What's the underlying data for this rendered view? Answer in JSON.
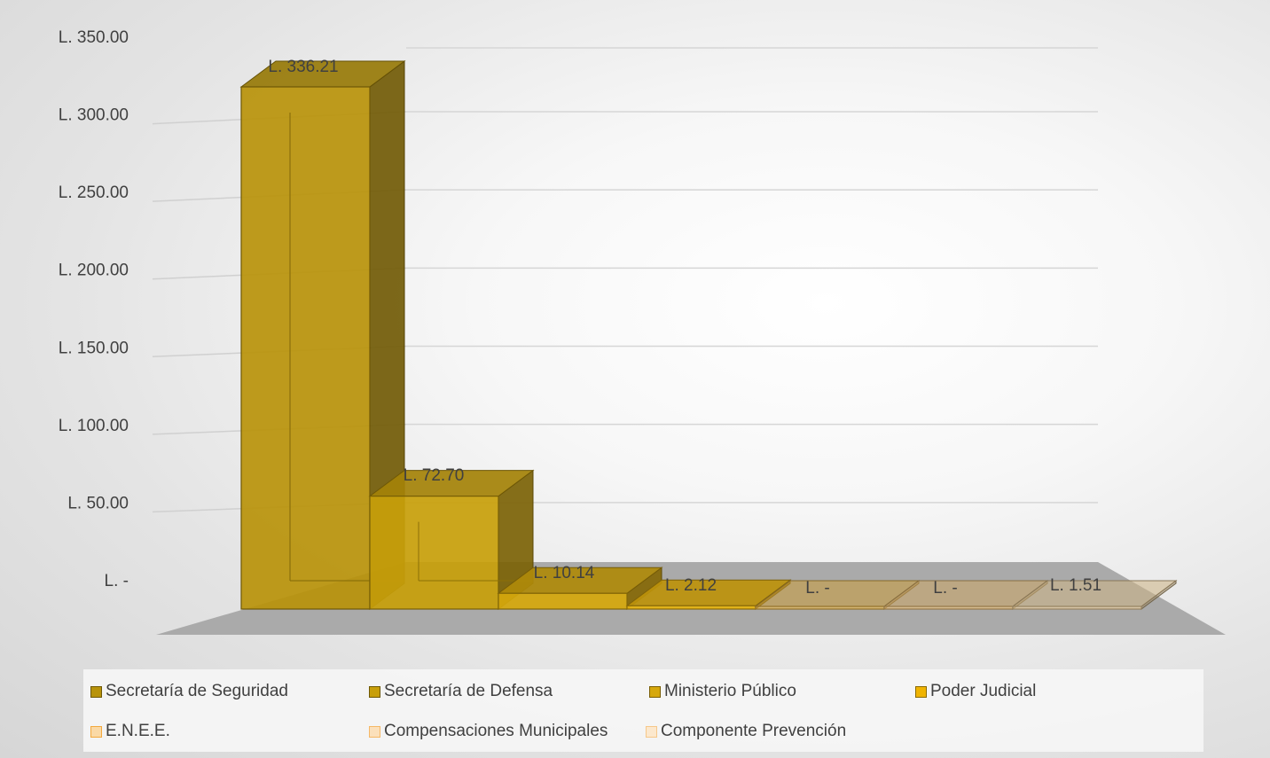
{
  "chart_data": {
    "type": "bar",
    "subtype": "3d-column",
    "categories": [
      "Secretaría de Seguridad",
      "Secretaría de Defensa",
      "Ministerio Público",
      "Poder Judicial",
      "E.N.E.E.",
      "Compensaciones Municipales",
      "Componente Prevención"
    ],
    "values": [
      336.21,
      72.7,
      10.14,
      2.12,
      0,
      0,
      1.51
    ],
    "data_labels": [
      "L. 336.21",
      "L. 72.70",
      "L. 10.14",
      "L. 2.12",
      "L. -",
      "L. -",
      "L. 1.51"
    ],
    "y_ticks": [
      "L. -",
      "L. 50.00",
      "L. 100.00",
      "L. 150.00",
      "L. 200.00",
      "L. 250.00",
      "L. 300.00",
      "L. 350.00"
    ],
    "ylim": [
      0,
      350
    ],
    "title": "",
    "xlabel": "",
    "ylabel": "",
    "grid": true,
    "legend_position": "bottom",
    "colors": [
      "#b8930a",
      "#c89f0a",
      "#d6a80c",
      "#e6b30e",
      "#f5bd45",
      "#f7c878",
      "#f9d9a0"
    ]
  },
  "legend": {
    "items": [
      {
        "label": "Secretaría de Seguridad",
        "color": "#b8930a"
      },
      {
        "label": "Secretaría de Defensa",
        "color": "#c89f0a"
      },
      {
        "label": "Ministerio Público",
        "color": "#d6a80c"
      },
      {
        "label": "Poder Judicial",
        "color": "#e6b30e"
      },
      {
        "label": "E.N.E.E.",
        "color": "#f5bd45"
      },
      {
        "label": "Compensaciones Municipales",
        "color": "#f7c878"
      },
      {
        "label": "Componente Prevención",
        "color": "#f9d9a0"
      }
    ]
  }
}
